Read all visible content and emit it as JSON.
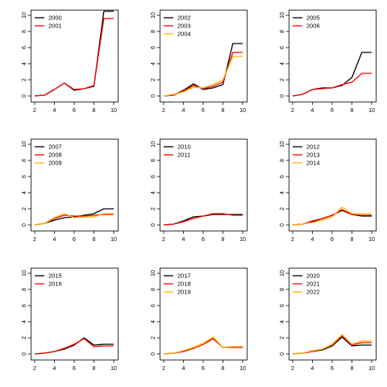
{
  "chart_data": [
    {
      "type": "line",
      "x": [
        2,
        3,
        4,
        5,
        6,
        7,
        8,
        9,
        10
      ],
      "xlim": [
        2,
        10
      ],
      "ylim": [
        0,
        10
      ],
      "xticks": [
        "2",
        "4",
        "6",
        "8",
        "10"
      ],
      "yticks": [
        "0",
        "2",
        "4",
        "6",
        "8",
        "10"
      ],
      "legend_position": "top-left",
      "series": [
        {
          "name": "2000",
          "color": "#000000",
          "values": [
            0,
            0.1,
            0.8,
            1.6,
            0.7,
            0.9,
            1.2,
            10.5,
            10.5
          ]
        },
        {
          "name": "2001",
          "color": "#ff0000",
          "values": [
            0,
            0.1,
            0.8,
            1.6,
            0.8,
            0.9,
            1.3,
            9.6,
            9.6
          ]
        }
      ]
    },
    {
      "type": "line",
      "x": [
        2,
        3,
        4,
        5,
        6,
        7,
        8,
        9,
        10
      ],
      "xlim": [
        2,
        10
      ],
      "ylim": [
        0,
        10
      ],
      "xticks": [
        "2",
        "4",
        "6",
        "8",
        "10"
      ],
      "yticks": [
        "0",
        "2",
        "4",
        "6",
        "8",
        "10"
      ],
      "legend_position": "top-left",
      "series": [
        {
          "name": "2002",
          "color": "#000000",
          "values": [
            0,
            0.1,
            0.7,
            1.5,
            0.8,
            1.0,
            1.4,
            6.5,
            6.5
          ]
        },
        {
          "name": "2003",
          "color": "#ff0000",
          "values": [
            0,
            0.1,
            0.6,
            1.3,
            0.9,
            1.2,
            1.7,
            5.4,
            5.4
          ]
        },
        {
          "name": "2004",
          "color": "#ffb300",
          "values": [
            0,
            0.2,
            0.5,
            1.1,
            1.0,
            1.4,
            2.0,
            4.9,
            4.9
          ]
        }
      ]
    },
    {
      "type": "line",
      "x": [
        2,
        3,
        4,
        5,
        6,
        7,
        8,
        9,
        10
      ],
      "xlim": [
        2,
        10
      ],
      "ylim": [
        0,
        10
      ],
      "xticks": [
        "2",
        "4",
        "6",
        "8",
        "10"
      ],
      "yticks": [
        "0",
        "2",
        "4",
        "6",
        "8",
        "10"
      ],
      "legend_position": "top-left",
      "series": [
        {
          "name": "2005",
          "color": "#000000",
          "values": [
            0,
            0.2,
            0.8,
            1.0,
            1.0,
            1.3,
            2.3,
            5.4,
            5.4
          ]
        },
        {
          "name": "2006",
          "color": "#ff0000",
          "values": [
            0,
            0.2,
            0.8,
            0.9,
            1.0,
            1.4,
            1.7,
            2.8,
            2.8
          ]
        }
      ]
    },
    {
      "type": "line",
      "x": [
        2,
        3,
        4,
        5,
        6,
        7,
        8,
        9,
        10
      ],
      "xlim": [
        2,
        10
      ],
      "ylim": [
        0,
        10
      ],
      "xticks": [
        "2",
        "4",
        "6",
        "8",
        "10"
      ],
      "yticks": [
        "0",
        "2",
        "4",
        "6",
        "8",
        "10"
      ],
      "legend_position": "top-left",
      "series": [
        {
          "name": "2007",
          "color": "#000000",
          "values": [
            0,
            0.2,
            0.6,
            0.9,
            1.0,
            1.2,
            1.4,
            2.0,
            2.0
          ]
        },
        {
          "name": "2008",
          "color": "#ff0000",
          "values": [
            0,
            0.2,
            0.8,
            1.2,
            1.1,
            1.1,
            1.2,
            1.3,
            1.3
          ]
        },
        {
          "name": "2009",
          "color": "#ffb300",
          "values": [
            0,
            0.2,
            0.9,
            1.4,
            0.9,
            1.0,
            1.0,
            1.4,
            1.4
          ]
        }
      ]
    },
    {
      "type": "line",
      "x": [
        2,
        3,
        4,
        5,
        6,
        7,
        8,
        9,
        10
      ],
      "xlim": [
        2,
        10
      ],
      "ylim": [
        0,
        10
      ],
      "xticks": [
        "2",
        "4",
        "6",
        "8",
        "10"
      ],
      "yticks": [
        "0",
        "2",
        "4",
        "6",
        "8",
        "10"
      ],
      "legend_position": "top-left",
      "series": [
        {
          "name": "2010",
          "color": "#000000",
          "values": [
            0,
            0.1,
            0.5,
            1.0,
            1.1,
            1.3,
            1.3,
            1.3,
            1.3
          ]
        },
        {
          "name": "2011",
          "color": "#ff0000",
          "values": [
            0,
            0.1,
            0.4,
            0.8,
            1.1,
            1.4,
            1.4,
            1.2,
            1.2
          ]
        }
      ]
    },
    {
      "type": "line",
      "x": [
        2,
        3,
        4,
        5,
        6,
        7,
        8,
        9,
        10
      ],
      "xlim": [
        2,
        10
      ],
      "ylim": [
        0,
        10
      ],
      "xticks": [
        "2",
        "4",
        "6",
        "8",
        "10"
      ],
      "yticks": [
        "0",
        "2",
        "4",
        "6",
        "8",
        "10"
      ],
      "legend_position": "top-left",
      "series": [
        {
          "name": "2012",
          "color": "#000000",
          "values": [
            0,
            0.1,
            0.4,
            0.8,
            1.2,
            1.8,
            1.3,
            1.1,
            1.1
          ]
        },
        {
          "name": "2013",
          "color": "#ff0000",
          "values": [
            0,
            0.1,
            0.5,
            0.8,
            1.2,
            1.9,
            1.3,
            1.2,
            1.2
          ]
        },
        {
          "name": "2014",
          "color": "#ffb300",
          "values": [
            0,
            0.1,
            0.3,
            0.6,
            1.0,
            2.2,
            1.4,
            1.4,
            1.4
          ]
        }
      ]
    },
    {
      "type": "line",
      "x": [
        2,
        3,
        4,
        5,
        6,
        7,
        8,
        9,
        10
      ],
      "xlim": [
        2,
        10
      ],
      "ylim": [
        0,
        10
      ],
      "xticks": [
        "2",
        "4",
        "6",
        "8",
        "10"
      ],
      "yticks": [
        "0",
        "2",
        "4",
        "6",
        "8",
        "10"
      ],
      "legend_position": "top-left",
      "series": [
        {
          "name": "2015",
          "color": "#000000",
          "values": [
            0,
            0.1,
            0.3,
            0.6,
            1.1,
            2.0,
            1.1,
            1.2,
            1.2
          ]
        },
        {
          "name": "2016",
          "color": "#ff0000",
          "values": [
            0,
            0.1,
            0.3,
            0.7,
            1.2,
            1.9,
            0.9,
            1.0,
            1.0
          ]
        }
      ]
    },
    {
      "type": "line",
      "x": [
        2,
        3,
        4,
        5,
        6,
        7,
        8,
        9,
        10
      ],
      "xlim": [
        2,
        10
      ],
      "ylim": [
        0,
        10
      ],
      "xticks": [
        "2",
        "4",
        "6",
        "8",
        "10"
      ],
      "yticks": [
        "0",
        "2",
        "4",
        "6",
        "8",
        "10"
      ],
      "legend_position": "top-left",
      "series": [
        {
          "name": "2017",
          "color": "#000000",
          "values": [
            0,
            0.1,
            0.3,
            0.7,
            1.2,
            1.9,
            0.8,
            0.9,
            0.9
          ]
        },
        {
          "name": "2018",
          "color": "#ff0000",
          "values": [
            0,
            0.1,
            0.3,
            0.7,
            1.2,
            1.9,
            0.8,
            0.8,
            0.8
          ]
        },
        {
          "name": "2019",
          "color": "#ffb300",
          "values": [
            0,
            0.1,
            0.4,
            0.8,
            1.3,
            2.1,
            0.8,
            0.9,
            0.9
          ]
        }
      ]
    },
    {
      "type": "line",
      "x": [
        2,
        3,
        4,
        5,
        6,
        7,
        8,
        9,
        10
      ],
      "xlim": [
        2,
        10
      ],
      "ylim": [
        0,
        10
      ],
      "xticks": [
        "2",
        "4",
        "6",
        "8",
        "10"
      ],
      "yticks": [
        "0",
        "2",
        "4",
        "6",
        "8",
        "10"
      ],
      "legend_position": "top-left",
      "series": [
        {
          "name": "2020",
          "color": "#000000",
          "values": [
            0,
            0.1,
            0.3,
            0.5,
            1.0,
            2.1,
            1.0,
            1.1,
            1.1
          ]
        },
        {
          "name": "2021",
          "color": "#ff0000",
          "values": [
            0,
            0.1,
            0.3,
            0.6,
            1.1,
            2.3,
            1.1,
            1.4,
            1.4
          ]
        },
        {
          "name": "2022",
          "color": "#ffb300",
          "values": [
            0,
            0.1,
            0.4,
            0.6,
            1.2,
            2.4,
            1.2,
            1.6,
            1.6
          ]
        }
      ]
    }
  ]
}
